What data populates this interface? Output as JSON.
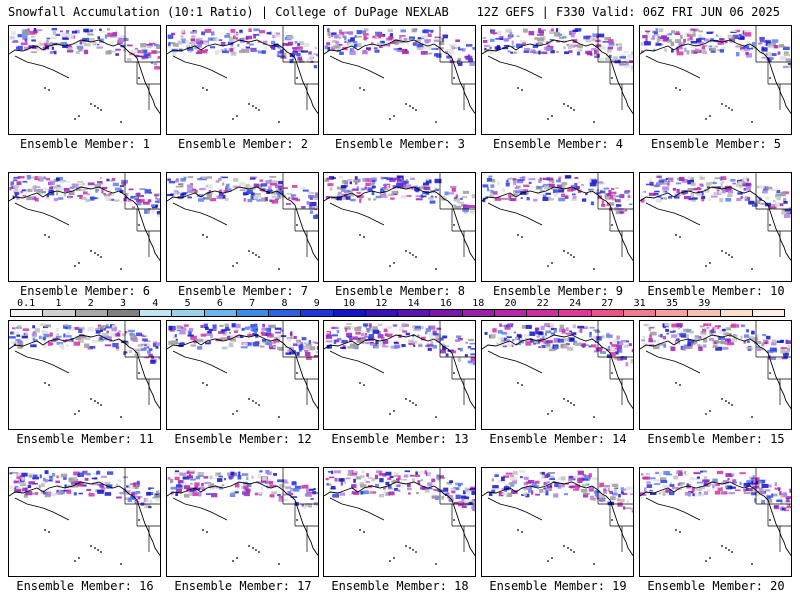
{
  "header": {
    "title_left": "Snowfall Accumulation (10:1 Ratio) | College of DuPage NEXLAB",
    "title_right": "12Z GEFS | F330 Valid: 06Z FRI JUN 06 2025"
  },
  "members": [
    {
      "label": "Ensemble Member: 1"
    },
    {
      "label": "Ensemble Member: 2"
    },
    {
      "label": "Ensemble Member: 3"
    },
    {
      "label": "Ensemble Member: 4"
    },
    {
      "label": "Ensemble Member: 5"
    },
    {
      "label": "Ensemble Member: 6"
    },
    {
      "label": "Ensemble Member: 7"
    },
    {
      "label": "Ensemble Member: 8"
    },
    {
      "label": "Ensemble Member: 9"
    },
    {
      "label": "Ensemble Member: 10"
    },
    {
      "label": "Ensemble Member: 11"
    },
    {
      "label": "Ensemble Member: 12"
    },
    {
      "label": "Ensemble Member: 13"
    },
    {
      "label": "Ensemble Member: 14"
    },
    {
      "label": "Ensemble Member: 15"
    },
    {
      "label": "Ensemble Member: 16"
    },
    {
      "label": "Ensemble Member: 17"
    },
    {
      "label": "Ensemble Member: 18"
    },
    {
      "label": "Ensemble Member: 19"
    },
    {
      "label": "Ensemble Member: 20"
    }
  ],
  "colorbar": {
    "labels": [
      "0.1",
      "1",
      "2",
      "3",
      "4",
      "5",
      "6",
      "7",
      "8",
      "9",
      "10",
      "12",
      "14",
      "16",
      "18",
      "20",
      "22",
      "24",
      "27",
      "31",
      "35",
      "39"
    ],
    "colors": [
      "#f4f4f4",
      "#d0d0d0",
      "#a8a8a8",
      "#808080",
      "#bfe6f0",
      "#9ad2ec",
      "#6cb6ec",
      "#3f8ce6",
      "#2a62e0",
      "#1c36d8",
      "#1414c8",
      "#3a10b8",
      "#5a14b0",
      "#7a18a8",
      "#9a20a8",
      "#b428a8",
      "#cc30a0",
      "#e03898",
      "#ec5088",
      "#f07a90",
      "#f4a0a0",
      "#f8c0b0",
      "#fae0cc",
      "#fcf0e4"
    ]
  }
}
